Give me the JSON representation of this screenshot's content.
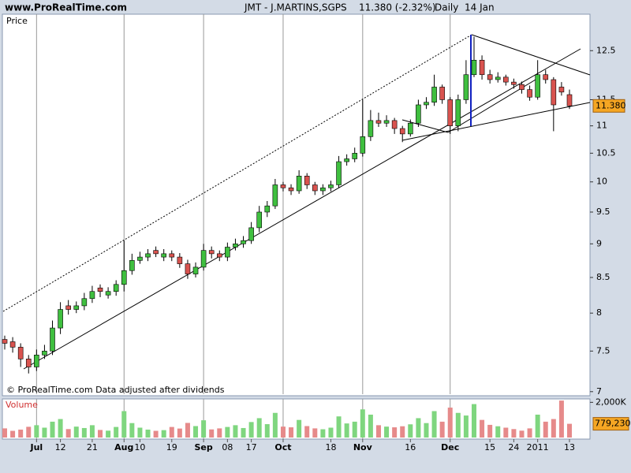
{
  "header": {
    "site": "www.ProRealTime.com",
    "instrument": "JMT - J.MARTINS,SGPS",
    "quote": "11.380 (-2.32%)",
    "period": "Daily  14 Jan"
  },
  "chart_data": {
    "type": "candlestick",
    "panel_label": "Price",
    "note": "© ProRealTime.com Data adjusted after dividends",
    "log_scale": true,
    "up_color": "#3fbf3f",
    "down_color": "#d9534f",
    "categories": [
      null,
      null,
      null,
      null,
      "Jul",
      null,
      null,
      "12",
      null,
      null,
      null,
      "21",
      null,
      null,
      null,
      "Aug",
      null,
      "10",
      null,
      null,
      null,
      "19",
      null,
      null,
      null,
      "Sep",
      null,
      null,
      "08",
      null,
      null,
      "17",
      null,
      null,
      null,
      "Oct",
      null,
      null,
      null,
      null,
      null,
      "18",
      null,
      null,
      null,
      "Nov",
      null,
      null,
      null,
      null,
      null,
      "16",
      null,
      null,
      null,
      null,
      "Dec",
      null,
      null,
      null,
      null,
      "15",
      null,
      null,
      "24",
      null,
      null,
      "2011",
      null,
      null,
      null,
      "13"
    ],
    "open": [
      7.65,
      7.62,
      7.55,
      7.4,
      7.3,
      7.45,
      7.5,
      7.8,
      8.1,
      8.05,
      8.1,
      8.2,
      8.35,
      8.25,
      8.3,
      8.4,
      8.6,
      8.75,
      8.8,
      8.9,
      8.8,
      8.85,
      8.8,
      8.7,
      8.55,
      8.65,
      8.9,
      8.85,
      8.8,
      8.95,
      9.0,
      9.05,
      9.25,
      9.5,
      9.6,
      9.95,
      9.9,
      9.85,
      10.1,
      9.95,
      9.85,
      9.9,
      9.95,
      10.35,
      10.4,
      10.5,
      10.8,
      11.1,
      11.05,
      11.1,
      10.95,
      10.85,
      11.05,
      11.4,
      11.45,
      11.75,
      11.5,
      11.0,
      11.5,
      12.0,
      12.3,
      12.0,
      11.9,
      11.95,
      11.85,
      11.8,
      11.7,
      11.55,
      12.0,
      11.9,
      11.75,
      11.6
    ],
    "high": [
      7.7,
      7.68,
      7.6,
      7.45,
      7.52,
      7.58,
      7.9,
      8.15,
      8.18,
      8.16,
      8.28,
      8.38,
      8.4,
      8.36,
      8.46,
      9.05,
      8.85,
      8.88,
      8.92,
      8.96,
      8.92,
      8.9,
      8.86,
      8.76,
      8.72,
      9.0,
      8.96,
      8.9,
      9.02,
      9.08,
      9.12,
      9.34,
      9.6,
      9.68,
      10.05,
      10.0,
      9.96,
      10.2,
      10.15,
      10.0,
      9.96,
      10.02,
      10.45,
      10.48,
      10.6,
      11.5,
      11.3,
      11.25,
      11.2,
      11.15,
      11.0,
      11.12,
      11.5,
      11.55,
      12.0,
      11.8,
      11.55,
      11.6,
      12.3,
      12.8,
      12.4,
      12.1,
      12.05,
      12.0,
      11.92,
      11.86,
      11.78,
      12.3,
      12.1,
      11.95,
      11.85,
      11.7
    ],
    "low": [
      7.52,
      7.48,
      7.3,
      7.22,
      7.25,
      7.4,
      7.45,
      7.72,
      7.98,
      8.0,
      8.04,
      8.14,
      8.22,
      8.2,
      8.24,
      8.3,
      8.54,
      8.7,
      8.74,
      8.8,
      8.74,
      8.74,
      8.64,
      8.48,
      8.5,
      8.6,
      8.78,
      8.74,
      8.74,
      8.9,
      8.94,
      9.0,
      9.18,
      9.42,
      9.55,
      9.84,
      9.78,
      9.8,
      9.88,
      9.78,
      9.78,
      9.84,
      9.9,
      10.28,
      10.34,
      10.44,
      10.72,
      10.98,
      10.98,
      10.85,
      10.7,
      10.8,
      10.98,
      11.32,
      11.38,
      11.42,
      10.85,
      10.9,
      11.42,
      11.95,
      11.9,
      11.82,
      11.84,
      11.78,
      11.72,
      11.62,
      11.48,
      11.5,
      11.82,
      10.9,
      11.58,
      11.32
    ],
    "close": [
      7.6,
      7.55,
      7.4,
      7.3,
      7.45,
      7.5,
      7.8,
      8.05,
      8.05,
      8.1,
      8.2,
      8.3,
      8.3,
      8.3,
      8.4,
      8.6,
      8.75,
      8.8,
      8.85,
      8.85,
      8.85,
      8.8,
      8.7,
      8.55,
      8.65,
      8.9,
      8.85,
      8.8,
      8.95,
      9.0,
      9.05,
      9.25,
      9.5,
      9.6,
      9.95,
      9.9,
      9.85,
      10.1,
      9.95,
      9.85,
      9.9,
      9.95,
      10.35,
      10.4,
      10.5,
      10.8,
      11.1,
      11.05,
      11.1,
      10.95,
      10.85,
      11.05,
      11.4,
      11.45,
      11.75,
      11.5,
      11.0,
      11.5,
      12.0,
      12.3,
      12.0,
      11.9,
      11.95,
      11.85,
      11.8,
      11.7,
      11.55,
      12.0,
      11.9,
      11.4,
      11.65,
      11.38
    ],
    "ylim": [
      6.97,
      13.3
    ],
    "yticks": [
      7,
      7.5,
      8,
      8.5,
      9,
      9.5,
      10,
      10.5,
      11,
      11.5,
      12.5
    ],
    "current_price": {
      "value": 11.38,
      "label": "11.380"
    },
    "volume": {
      "panel_label": "Volume",
      "up_color": "#7fd67f",
      "down_color": "#e68a8a",
      "values": [
        520000,
        380000,
        450000,
        610000,
        700000,
        560000,
        900000,
        1050000,
        480000,
        620000,
        540000,
        700000,
        430000,
        390000,
        600000,
        1500000,
        820000,
        560000,
        450000,
        380000,
        420000,
        600000,
        510000,
        830000,
        650000,
        980000,
        460000,
        520000,
        600000,
        700000,
        540000,
        880000,
        1100000,
        760000,
        1400000,
        620000,
        580000,
        1000000,
        650000,
        520000,
        470000,
        560000,
        1200000,
        800000,
        900000,
        1600000,
        1300000,
        700000,
        620000,
        580000,
        640000,
        750000,
        1100000,
        820000,
        1500000,
        900000,
        1700000,
        1400000,
        1250000,
        1900000,
        1000000,
        720000,
        640000,
        560000,
        480000,
        390000,
        520000,
        1300000,
        900000,
        1050000,
        2100000,
        779230
      ],
      "ylim": [
        0,
        2150000
      ],
      "yticks": [
        {
          "value": 2000000,
          "label": "2,000K"
        }
      ],
      "current": {
        "value": 779230,
        "label": "779,230"
      }
    }
  }
}
